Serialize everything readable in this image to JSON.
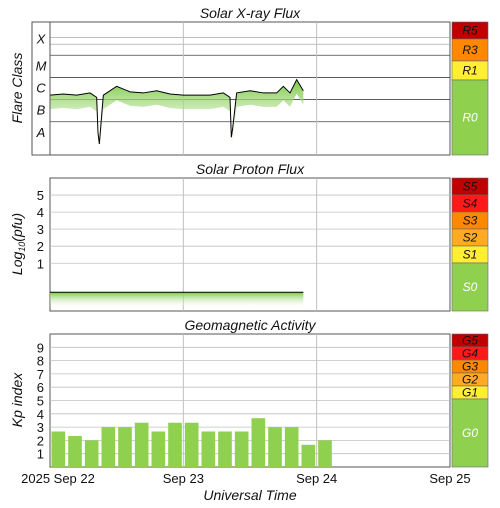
{
  "chart_data": [
    {
      "type": "line",
      "title": "Solar X-ray Flux",
      "ylabel": "Flare Class",
      "class_labels": [
        "X",
        "M",
        "C",
        "B",
        "A"
      ],
      "scale": [
        {
          "label": "R5",
          "color": "#c00000",
          "text": "#111111"
        },
        {
          "label": "R3",
          "color": "#ff8800",
          "text": "#111111"
        },
        {
          "label": "R1",
          "color": "#ffee33",
          "text": "#111111"
        },
        {
          "label": "R0",
          "color": "#8fd14f",
          "text": "#ffffff"
        }
      ],
      "x": [
        0,
        0.1,
        0.2,
        0.3,
        0.35,
        0.36,
        0.37,
        0.4,
        0.5,
        0.6,
        0.7,
        0.8,
        0.9,
        1.0,
        1.1,
        1.2,
        1.3,
        1.35,
        1.36,
        1.37,
        1.4,
        1.5,
        1.6,
        1.7,
        1.75,
        1.8,
        1.85,
        1.9
      ],
      "values": [
        3.2,
        3.25,
        3.2,
        3.3,
        3.1,
        1.5,
        1.0,
        3.2,
        3.6,
        3.35,
        3.3,
        3.4,
        3.25,
        3.2,
        3.2,
        3.2,
        3.3,
        3.1,
        1.3,
        1.7,
        3.3,
        3.4,
        3.3,
        3.3,
        3.6,
        3.3,
        3.9,
        3.4
      ]
    },
    {
      "type": "area",
      "title": "Solar Proton Flux",
      "ylabel": "Log10(pfu)",
      "ylim": [
        -1.8,
        6
      ],
      "yticks": [
        "1",
        "2",
        "3",
        "4",
        "5"
      ],
      "scale": [
        {
          "label": "S5",
          "color": "#c00000",
          "text": "#111111"
        },
        {
          "label": "S4",
          "color": "#ff1a1a",
          "text": "#111111"
        },
        {
          "label": "S3",
          "color": "#ff8800",
          "text": "#111111"
        },
        {
          "label": "S2",
          "color": "#ffaa22",
          "text": "#111111"
        },
        {
          "label": "S1",
          "color": "#ffee33",
          "text": "#111111"
        },
        {
          "label": "S0",
          "color": "#8fd14f",
          "text": "#ffffff"
        }
      ],
      "x": [
        0,
        1.9
      ],
      "values": [
        -0.7,
        -0.7
      ]
    },
    {
      "type": "bar",
      "title": "Geomagnetic Activity",
      "ylabel": "Kp index",
      "ylim": [
        0,
        10
      ],
      "yticks": [
        "1",
        "2",
        "3",
        "4",
        "5",
        "6",
        "7",
        "8",
        "9"
      ],
      "scale": [
        {
          "label": "G5",
          "color": "#c00000",
          "text": "#111111"
        },
        {
          "label": "G4",
          "color": "#ff1a1a",
          "text": "#111111"
        },
        {
          "label": "G3",
          "color": "#ff8800",
          "text": "#111111"
        },
        {
          "label": "G2",
          "color": "#ffaa22",
          "text": "#111111"
        },
        {
          "label": "G1",
          "color": "#ffee33",
          "text": "#111111"
        },
        {
          "label": "G0",
          "color": "#8fd14f",
          "text": "#ffffff"
        }
      ],
      "values": [
        2.67,
        2.33,
        2.0,
        3.0,
        3.0,
        3.33,
        2.67,
        3.33,
        3.33,
        2.67,
        2.67,
        2.67,
        3.67,
        3.0,
        3.0,
        1.67,
        2.0
      ]
    }
  ],
  "x_axis": {
    "label": "Universal Time",
    "ticks": [
      "2025 Sep 22",
      "Sep 23",
      "Sep 24",
      "Sep 25"
    ]
  },
  "colors": {
    "fill": "#8fd14f",
    "line": "#000000",
    "grid": "#c0c0c0"
  }
}
